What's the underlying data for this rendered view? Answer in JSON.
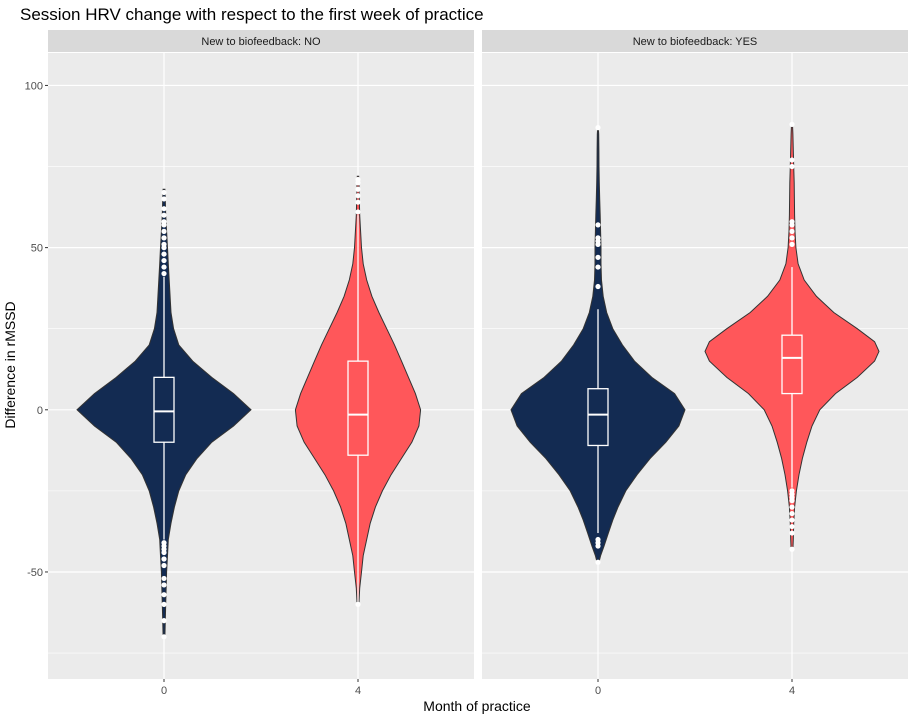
{
  "chart_data": {
    "type": "violin",
    "title": "Session HRV change with respect to the first week of practice",
    "xlabel": "Month of practice",
    "ylabel": "Difference in rMSSD",
    "ylim": [
      -83,
      110
    ],
    "y_ticks": [
      -50,
      0,
      50,
      100
    ],
    "grid": true,
    "legend": "none",
    "categories": [
      "0",
      "4"
    ],
    "colors": {
      "0": "#132b52",
      "4": "#ff575a",
      "outline": "#333333",
      "box": "#ffffff",
      "panel_bg": "#ebebeb",
      "strip_bg": "#d9d9d9",
      "grid": "#ffffff"
    },
    "panels": [
      {
        "strip_label": "New to biofeedback: NO",
        "groups": [
          {
            "category": "0",
            "box": {
              "whisker_low": -40,
              "q1": -10,
              "median": -0.5,
              "q3": 10,
              "whisker_high": 41
            },
            "density": [
              [
                -70,
                0.01
              ],
              [
                -60,
                0.02
              ],
              [
                -50,
                0.03
              ],
              [
                -45,
                0.04
              ],
              [
                -40,
                0.05
              ],
              [
                -35,
                0.08
              ],
              [
                -30,
                0.12
              ],
              [
                -25,
                0.17
              ],
              [
                -20,
                0.25
              ],
              [
                -15,
                0.38
              ],
              [
                -10,
                0.55
              ],
              [
                -5,
                0.8
              ],
              [
                0,
                1.0
              ],
              [
                5,
                0.8
              ],
              [
                10,
                0.55
              ],
              [
                15,
                0.33
              ],
              [
                20,
                0.17
              ],
              [
                25,
                0.11
              ],
              [
                30,
                0.08
              ],
              [
                35,
                0.07
              ],
              [
                40,
                0.06
              ],
              [
                45,
                0.05
              ],
              [
                50,
                0.04
              ],
              [
                55,
                0.03
              ],
              [
                60,
                0.02
              ],
              [
                65,
                0.015
              ],
              [
                68,
                0.01
              ]
            ],
            "outliers": [
              -70,
              -65,
              -60,
              -57,
              -54,
              -52,
              -48,
              -46,
              -44,
              -43,
              -42,
              -41,
              42,
              44,
              46,
              48,
              50,
              51,
              53,
              55,
              57,
              58,
              60,
              62,
              65,
              67
            ]
          },
          {
            "category": "4",
            "box": {
              "whisker_low": -60,
              "q1": -14,
              "median": -1.5,
              "q3": 15,
              "whisker_high": 60
            },
            "density": [
              [
                -60,
                0.01
              ],
              [
                -55,
                0.02
              ],
              [
                -50,
                0.04
              ],
              [
                -45,
                0.06
              ],
              [
                -40,
                0.1
              ],
              [
                -35,
                0.14
              ],
              [
                -30,
                0.2
              ],
              [
                -25,
                0.28
              ],
              [
                -20,
                0.38
              ],
              [
                -15,
                0.5
              ],
              [
                -10,
                0.62
              ],
              [
                -5,
                0.7
              ],
              [
                0,
                0.72
              ],
              [
                5,
                0.66
              ],
              [
                10,
                0.58
              ],
              [
                15,
                0.5
              ],
              [
                20,
                0.42
              ],
              [
                25,
                0.33
              ],
              [
                30,
                0.24
              ],
              [
                35,
                0.16
              ],
              [
                40,
                0.1
              ],
              [
                45,
                0.06
              ],
              [
                50,
                0.04
              ],
              [
                55,
                0.03
              ],
              [
                60,
                0.02
              ],
              [
                65,
                0.015
              ],
              [
                70,
                0.01
              ],
              [
                72,
                0.008
              ]
            ],
            "outliers": [
              -60,
              61,
              64,
              66,
              68,
              70,
              71
            ]
          }
        ]
      },
      {
        "strip_label": "New to biofeedback: YES",
        "groups": [
          {
            "category": "0",
            "box": {
              "whisker_low": -38,
              "q1": -11,
              "median": -1.5,
              "q3": 6.5,
              "whisker_high": 31
            },
            "density": [
              [
                -47,
                0.01
              ],
              [
                -45,
                0.03
              ],
              [
                -42,
                0.07
              ],
              [
                -38,
                0.12
              ],
              [
                -34,
                0.17
              ],
              [
                -30,
                0.23
              ],
              [
                -25,
                0.32
              ],
              [
                -20,
                0.45
              ],
              [
                -15,
                0.6
              ],
              [
                -10,
                0.78
              ],
              [
                -5,
                0.93
              ],
              [
                0,
                1.0
              ],
              [
                5,
                0.88
              ],
              [
                10,
                0.62
              ],
              [
                15,
                0.42
              ],
              [
                20,
                0.28
              ],
              [
                25,
                0.17
              ],
              [
                30,
                0.1
              ],
              [
                35,
                0.06
              ],
              [
                40,
                0.04
              ],
              [
                45,
                0.035
              ],
              [
                50,
                0.035
              ],
              [
                55,
                0.03
              ],
              [
                60,
                0.025
              ],
              [
                65,
                0.02
              ],
              [
                70,
                0.015
              ],
              [
                75,
                0.012
              ],
              [
                80,
                0.01
              ],
              [
                85,
                0.008
              ],
              [
                87,
                0.004
              ]
            ],
            "outliers": [
              -47,
              -42,
              -41,
              -40,
              38,
              44,
              47,
              51,
              52,
              53,
              57,
              87
            ]
          },
          {
            "category": "4",
            "box": {
              "whisker_low": -24,
              "q1": 5,
              "median": 16,
              "q3": 23,
              "whisker_high": 44
            },
            "density": [
              [
                -43,
                0.01
              ],
              [
                -40,
                0.015
              ],
              [
                -35,
                0.02
              ],
              [
                -30,
                0.03
              ],
              [
                -25,
                0.05
              ],
              [
                -20,
                0.08
              ],
              [
                -15,
                0.12
              ],
              [
                -10,
                0.17
              ],
              [
                -5,
                0.23
              ],
              [
                0,
                0.32
              ],
              [
                5,
                0.5
              ],
              [
                10,
                0.75
              ],
              [
                15,
                0.95
              ],
              [
                18,
                1.0
              ],
              [
                21,
                0.95
              ],
              [
                25,
                0.75
              ],
              [
                30,
                0.48
              ],
              [
                35,
                0.28
              ],
              [
                40,
                0.14
              ],
              [
                45,
                0.07
              ],
              [
                50,
                0.045
              ],
              [
                55,
                0.035
              ],
              [
                60,
                0.03
              ],
              [
                65,
                0.028
              ],
              [
                70,
                0.025
              ],
              [
                75,
                0.02
              ],
              [
                80,
                0.015
              ],
              [
                85,
                0.01
              ],
              [
                88,
                0.006
              ]
            ],
            "outliers": [
              -43,
              -38,
              -36,
              -34,
              -32,
              -30,
              -28,
              -27,
              -26,
              -25,
              51,
              53,
              55,
              57,
              58,
              75,
              77,
              88
            ]
          }
        ]
      }
    ]
  }
}
